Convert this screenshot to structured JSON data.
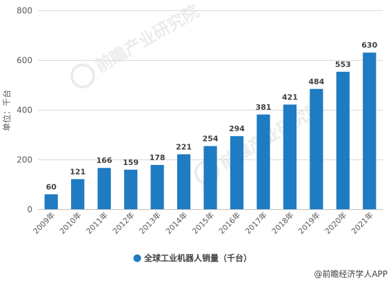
{
  "chart_data": {
    "type": "bar",
    "categories": [
      "2009年",
      "2010年",
      "2011年",
      "2012年",
      "2013年",
      "2014年",
      "2015年",
      "2016年",
      "2017年",
      "2018年",
      "2019年",
      "2020年",
      "2021年"
    ],
    "series": [
      {
        "name": "全球工业机器人销量（千台）",
        "values": [
          60,
          121,
          166,
          159,
          178,
          221,
          254,
          294,
          381,
          421,
          484,
          553,
          630
        ]
      }
    ],
    "ylabel": "单位：千台",
    "ylim": [
      0,
      800
    ],
    "yticks": [
      0,
      200,
      400,
      600,
      800
    ],
    "grid": true,
    "legend_position": "bottom",
    "bar_color": "#1f7bc2",
    "data_labels": true
  },
  "source": "@前瞻经济学人APP",
  "watermark": "前瞻产业研究院"
}
